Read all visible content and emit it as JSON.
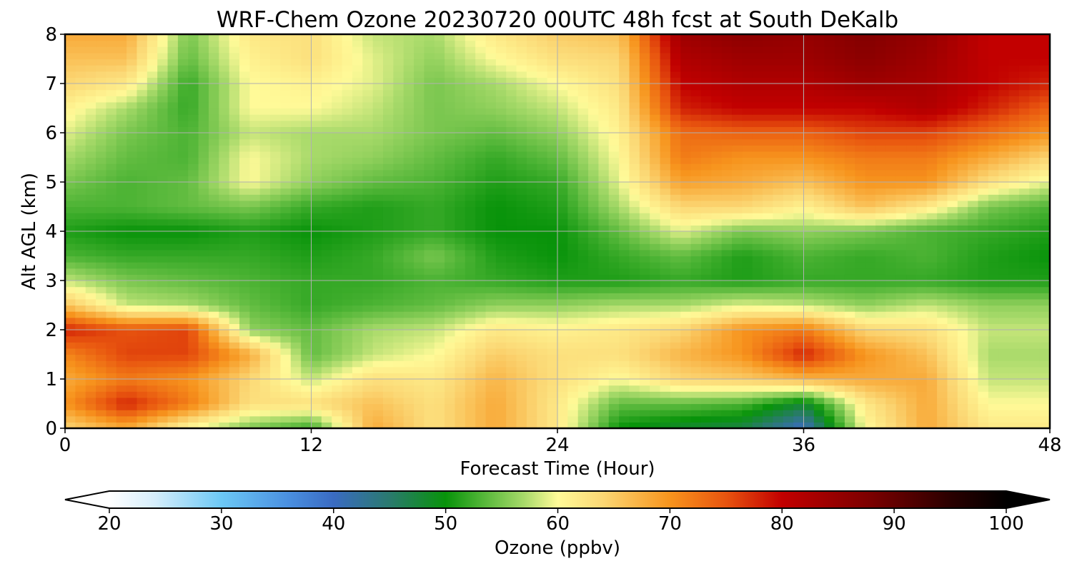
{
  "chart_data": {
    "type": "heatmap",
    "title": "WRF-Chem Ozone  20230720 00UTC 48h fcst at South DeKalb",
    "xlabel": "Forecast Time (Hour)",
    "ylabel": "Alt AGL (km)",
    "xlim": [
      0,
      48
    ],
    "ylim": [
      0,
      8
    ],
    "x_ticks": [
      0,
      12,
      24,
      36,
      48
    ],
    "y_ticks": [
      0,
      1,
      2,
      3,
      4,
      5,
      6,
      7,
      8
    ],
    "grid": true,
    "x": [
      0,
      3,
      6,
      9,
      12,
      15,
      18,
      21,
      24,
      27,
      30,
      33,
      36,
      39,
      42,
      45,
      48
    ],
    "y": [
      0,
      0.5,
      1,
      1.5,
      2,
      2.5,
      3,
      3.5,
      4,
      4.5,
      5,
      5.5,
      6,
      6.5,
      7,
      7.5,
      8
    ],
    "values_note_units": "ppbv",
    "values": [
      [
        64,
        68,
        60,
        55,
        52,
        68,
        63,
        68,
        62,
        50,
        48,
        47,
        40,
        60,
        68,
        62,
        62
      ],
      [
        70,
        78,
        72,
        63,
        63,
        66,
        63,
        68,
        62,
        54,
        54,
        53,
        48,
        62,
        68,
        60,
        60
      ],
      [
        68,
        72,
        70,
        64,
        58,
        63,
        62,
        67,
        63,
        60,
        64,
        65,
        67,
        68,
        68,
        58,
        58
      ],
      [
        71,
        76,
        76,
        68,
        54,
        58,
        60,
        65,
        63,
        63,
        67,
        70,
        78,
        70,
        66,
        57,
        57
      ],
      [
        78,
        75,
        76,
        56,
        54,
        57,
        58,
        62,
        61,
        62,
        64,
        70,
        72,
        64,
        63,
        58,
        58
      ],
      [
        66,
        58,
        57,
        54,
        52,
        53,
        54,
        56,
        56,
        57,
        57,
        59,
        58,
        56,
        58,
        56,
        56
      ],
      [
        58,
        55,
        54,
        53,
        52,
        52,
        53,
        52,
        51,
        51,
        52,
        51,
        52,
        52,
        52,
        51,
        51
      ],
      [
        53,
        52,
        52,
        52,
        51,
        52,
        55,
        51,
        50,
        52,
        54,
        51,
        53,
        52,
        53,
        51,
        50
      ],
      [
        51,
        50,
        50,
        51,
        50,
        51,
        52,
        50,
        50,
        54,
        59,
        55,
        56,
        55,
        53,
        52,
        51
      ],
      [
        53,
        53,
        54,
        55,
        52,
        51,
        52,
        50,
        51,
        57,
        64,
        64,
        61,
        66,
        62,
        55,
        53
      ],
      [
        55,
        53,
        54,
        60,
        56,
        54,
        53,
        51,
        52,
        59,
        69,
        68,
        66,
        70,
        70,
        63,
        59
      ],
      [
        57,
        54,
        53,
        60,
        57,
        56,
        54,
        52,
        54,
        60,
        72,
        70,
        70,
        72,
        72,
        68,
        64
      ],
      [
        59,
        55,
        53,
        58,
        57,
        57,
        55,
        54,
        56,
        61,
        73,
        74,
        74,
        76,
        76,
        73,
        70
      ],
      [
        61,
        57,
        52,
        60,
        60,
        58,
        55,
        56,
        58,
        62,
        78,
        80,
        80,
        80,
        82,
        78,
        74
      ],
      [
        64,
        62,
        52,
        60,
        61,
        59,
        55,
        57,
        60,
        63,
        80,
        82,
        82,
        84,
        83,
        80,
        78
      ],
      [
        66,
        66,
        54,
        61,
        63,
        59,
        56,
        60,
        63,
        64,
        82,
        84,
        84,
        86,
        84,
        80,
        80
      ],
      [
        68,
        68,
        55,
        62,
        63,
        58,
        57,
        62,
        65,
        66,
        84,
        86,
        85,
        87,
        85,
        80,
        80
      ]
    ]
  },
  "colorbar": {
    "label": "Ozone  (ppbv)",
    "min": 20,
    "max": 100,
    "ticks": [
      "20",
      "30",
      "40",
      "50",
      "60",
      "70",
      "80",
      "90",
      "100"
    ],
    "extend": "both",
    "stops": [
      {
        "v": 20,
        "c": "#ffffff"
      },
      {
        "v": 24,
        "c": "#d6eefb"
      },
      {
        "v": 30,
        "c": "#6cc8f5"
      },
      {
        "v": 36,
        "c": "#4a8fe0"
      },
      {
        "v": 40,
        "c": "#3a6bc2"
      },
      {
        "v": 45,
        "c": "#2a7a6e"
      },
      {
        "v": 50,
        "c": "#08930a"
      },
      {
        "v": 53,
        "c": "#4cb334"
      },
      {
        "v": 57,
        "c": "#a8da6a"
      },
      {
        "v": 60,
        "c": "#fffa98"
      },
      {
        "v": 64,
        "c": "#fbd774"
      },
      {
        "v": 70,
        "c": "#f7941d"
      },
      {
        "v": 75,
        "c": "#e8540f"
      },
      {
        "v": 80,
        "c": "#c20000"
      },
      {
        "v": 88,
        "c": "#7a0000"
      },
      {
        "v": 95,
        "c": "#2a0000"
      },
      {
        "v": 100,
        "c": "#000000"
      }
    ]
  }
}
